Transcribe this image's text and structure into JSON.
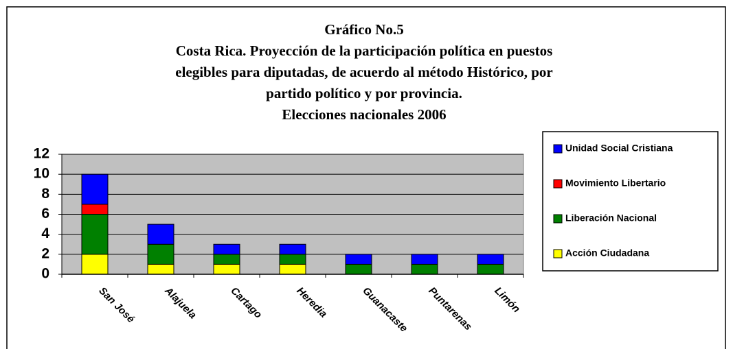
{
  "chart_data": {
    "type": "stacked_bar",
    "title": [
      "Gráfico No.5",
      "Costa Rica. Proyección de la participación política en puestos",
      "elegibles para diputadas, de acuerdo al método Histórico, por",
      "partido político y por provincia.",
      "Elecciones nacionales 2006"
    ],
    "categories": [
      "San José",
      "Alajuela",
      "Cartago",
      "Heredia",
      "Guanacaste",
      "Puntarenas",
      "Limón"
    ],
    "series": [
      {
        "name": "Acción Ciudadana",
        "color": "#ffff00",
        "values": [
          2,
          1,
          1,
          1,
          0,
          0,
          0
        ]
      },
      {
        "name": "Liberación Nacional",
        "color": "#008000",
        "values": [
          4,
          2,
          1,
          1,
          1,
          1,
          1
        ]
      },
      {
        "name": "Movimiento Libertario",
        "color": "#ff0000",
        "values": [
          1,
          0,
          0,
          0,
          0,
          0,
          0
        ]
      },
      {
        "name": "Unidad Social Cristiana",
        "color": "#0000ff",
        "values": [
          3,
          2,
          1,
          1,
          1,
          1,
          1
        ]
      }
    ],
    "ylim": [
      0,
      12
    ],
    "yticks": [
      0,
      2,
      4,
      6,
      8,
      10,
      12
    ],
    "grid": true,
    "legend": "right"
  }
}
